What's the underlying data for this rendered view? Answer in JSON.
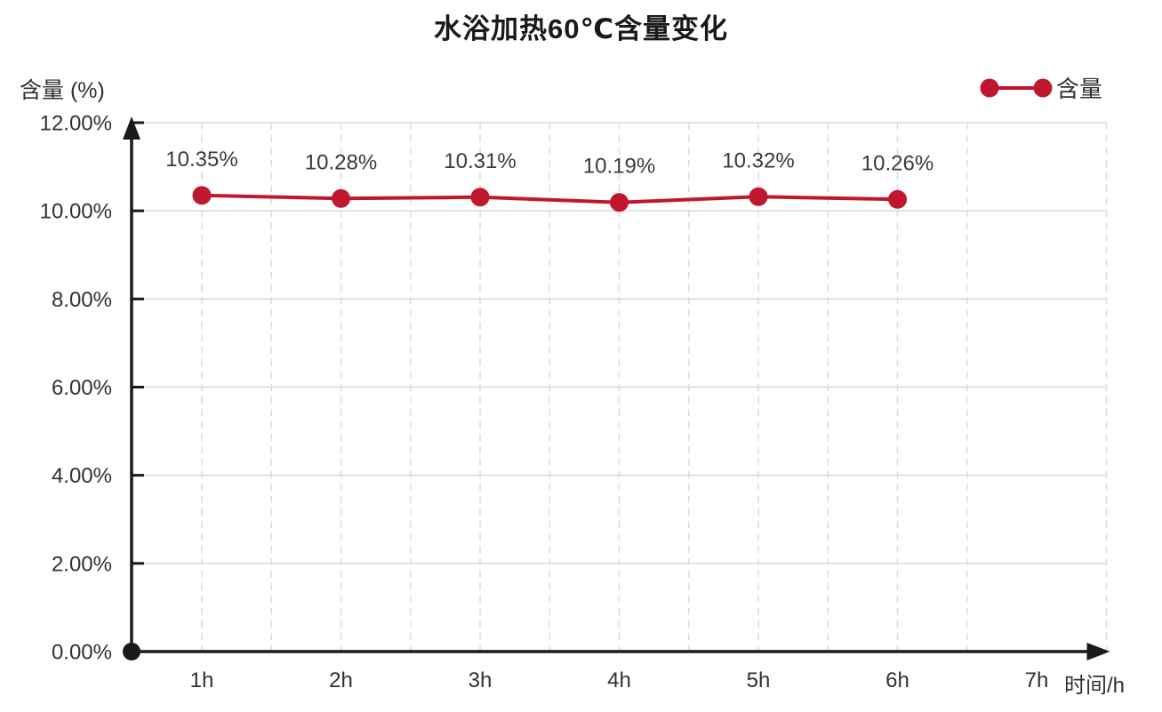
{
  "title": "水浴加热60℃含量变化",
  "y_axis_title": "含量 (%)",
  "x_axis_title": "时间/h",
  "legend": {
    "label": "含量"
  },
  "chart_data": {
    "type": "line",
    "title": "水浴加热60℃含量变化",
    "categories": [
      "1h",
      "2h",
      "3h",
      "4h",
      "5h",
      "6h",
      "7h"
    ],
    "series": [
      {
        "name": "含量",
        "values": [
          10.35,
          10.28,
          10.31,
          10.19,
          10.32,
          10.26
        ],
        "data_labels": [
          "10.35%",
          "10.28%",
          "10.31%",
          "10.19%",
          "10.32%",
          "10.26%"
        ]
      }
    ],
    "xlabel": "时间/h",
    "ylabel": "含量 (%)",
    "ylim": [
      0,
      12
    ],
    "y_ticks": [
      {
        "value": 0,
        "label": "0.00%"
      },
      {
        "value": 2,
        "label": "2.00%"
      },
      {
        "value": 4,
        "label": "4.00%"
      },
      {
        "value": 6,
        "label": "6.00%"
      },
      {
        "value": 8,
        "label": "8.00%"
      },
      {
        "value": 10,
        "label": "10.00%"
      },
      {
        "value": 12,
        "label": "12.00%"
      }
    ],
    "grid": {
      "horizontal": "solid",
      "vertical": "dashed, at half-category steps from 1h to 6.5h, dashed right border"
    },
    "legend_position": "top-right",
    "colors": {
      "series": "#c0172e",
      "axis": "#1a1a1a",
      "gridline_solid": "#d9d9d9",
      "gridline_dashed": "#dcdcdc",
      "tick_text": "#303030",
      "data_label_text": "#3a3a3a"
    }
  }
}
